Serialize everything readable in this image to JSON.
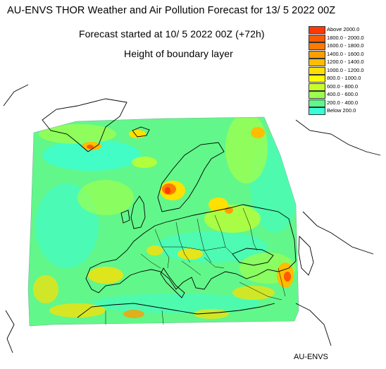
{
  "header": {
    "title": "AU-ENVS THOR Weather and Air Pollution Forecast for 13/ 5 2022  00Z",
    "subtitle": "Forecast started at 10/ 5 2022  00Z (+72h)",
    "variable": "Height of boundary layer"
  },
  "legend": {
    "items": [
      {
        "label": "Above   2000.0",
        "color": "#ff3a00"
      },
      {
        "label": "1800.0  -  2000.0",
        "color": "#ff5a00"
      },
      {
        "label": "1600.0  -  1800.0",
        "color": "#ff7a00"
      },
      {
        "label": "1400.0  -  1600.0",
        "color": "#ff9d00"
      },
      {
        "label": "1200.0  -  1400.0",
        "color": "#ffbd00"
      },
      {
        "label": "1000.0  -  1200.0",
        "color": "#ffe000"
      },
      {
        "label": "800.0  -  1000.0",
        "color": "#ffff00"
      },
      {
        "label": "600.0  -    800.0",
        "color": "#c8ff28"
      },
      {
        "label": "400.0  -    600.0",
        "color": "#9bff50"
      },
      {
        "label": "200.0  -    400.0",
        "color": "#62f78a"
      },
      {
        "label": "Below     200.0",
        "color": "#38ffd9"
      }
    ]
  },
  "credit": "AU-ENVS",
  "colors": {
    "background_field": "#62f78a",
    "coastline": "#000000",
    "border": "#000000"
  }
}
